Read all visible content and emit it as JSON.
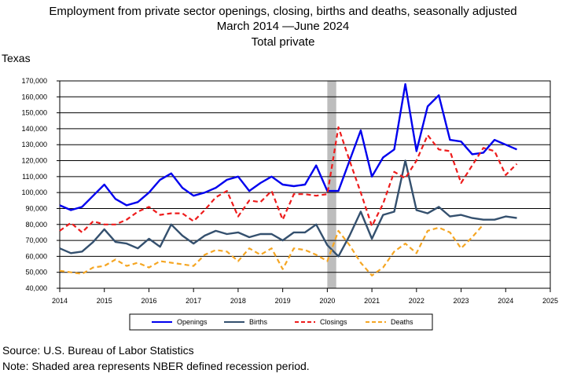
{
  "title_lines": [
    "Employment from private sector openings, closing, births and deaths, seasonally adjusted",
    "March 2014 —June 2024",
    "Total private"
  ],
  "state": "Texas",
  "source": "Source: U.S. Bureau of Labor Statistics",
  "note": "Note: Shaded area represents NBER defined recession period.",
  "colors": {
    "openings": "#0000ee",
    "births": "#34506e",
    "closings": "#ee1c1c",
    "deaths": "#f5a623",
    "recession": "#bdbdbd"
  },
  "chart_data": {
    "type": "line",
    "xlim": [
      2014,
      2025
    ],
    "ylim": [
      40000,
      170000
    ],
    "grid": true,
    "legend_position": "bottom",
    "x_ticks": [
      "2014",
      "2015",
      "2016",
      "2017",
      "2018",
      "2019",
      "2020",
      "2021",
      "2022",
      "2023",
      "2024",
      "2025"
    ],
    "y_ticks": [
      "40,000",
      "50,000",
      "60,000",
      "70,000",
      "80,000",
      "90,000",
      "100,000",
      "110,000",
      "120,000",
      "130,000",
      "140,000",
      "150,000",
      "160,000",
      "170,000"
    ],
    "recession": [
      2020.0,
      2020.2
    ],
    "x": [
      2014.0,
      2014.25,
      2014.5,
      2014.75,
      2015.0,
      2015.25,
      2015.5,
      2015.75,
      2016.0,
      2016.25,
      2016.5,
      2016.75,
      2017.0,
      2017.25,
      2017.5,
      2017.75,
      2018.0,
      2018.25,
      2018.5,
      2018.75,
      2019.0,
      2019.25,
      2019.5,
      2019.75,
      2020.0,
      2020.25,
      2020.5,
      2020.75,
      2021.0,
      2021.25,
      2021.5,
      2021.75,
      2022.0,
      2022.25,
      2022.5,
      2022.75,
      2023.0,
      2023.25,
      2023.5,
      2023.75,
      2024.0,
      2024.25
    ],
    "series": [
      {
        "name": "Openings",
        "style": "solid",
        "values": [
          92000,
          89000,
          91000,
          98000,
          105000,
          96000,
          92000,
          94000,
          100000,
          108000,
          112000,
          103000,
          98000,
          100000,
          103000,
          108000,
          110000,
          101000,
          106000,
          110000,
          105000,
          104000,
          105000,
          117000,
          101000,
          101000,
          120000,
          139000,
          110000,
          122000,
          127000,
          168000,
          126000,
          154000,
          161000,
          133000,
          132000,
          124000,
          125000,
          133000,
          130000,
          127000
        ]
      },
      {
        "name": "Births",
        "style": "solid",
        "values": [
          65000,
          62000,
          63000,
          69000,
          77000,
          69000,
          68000,
          65000,
          71000,
          66000,
          80000,
          73000,
          68000,
          73000,
          76000,
          74000,
          75000,
          72000,
          74000,
          74000,
          70000,
          75000,
          75000,
          80000,
          67000,
          60000,
          73000,
          88000,
          71000,
          86000,
          88000,
          120000,
          89000,
          87000,
          91000,
          85000,
          86000,
          84000,
          83000,
          83000,
          85000,
          84000
        ]
      },
      {
        "name": "Closings",
        "style": "dashed",
        "values": [
          76000,
          81000,
          75000,
          82000,
          80000,
          80000,
          83000,
          88000,
          91000,
          86000,
          87000,
          87000,
          82000,
          89000,
          97000,
          101000,
          85000,
          95000,
          94000,
          101000,
          83000,
          99000,
          99000,
          98000,
          99000,
          141000,
          120000,
          100000,
          79000,
          93000,
          113000,
          109000,
          120000,
          136000,
          127000,
          126000,
          106000,
          117000,
          128000,
          126000,
          111000,
          118000
        ]
      },
      {
        "name": "Deaths",
        "style": "dashed",
        "values": [
          51000,
          50000,
          49000,
          53000,
          54000,
          58000,
          54000,
          56000,
          53000,
          57000,
          56000,
          55000,
          54000,
          61000,
          64000,
          63000,
          57000,
          65000,
          61000,
          65000,
          52000,
          65000,
          64000,
          61000,
          57000,
          76000,
          67000,
          56000,
          48000,
          53000,
          63000,
          68000,
          62000,
          76000,
          78000,
          75000,
          65000,
          72000,
          80000,
          null,
          null,
          null
        ]
      }
    ]
  }
}
